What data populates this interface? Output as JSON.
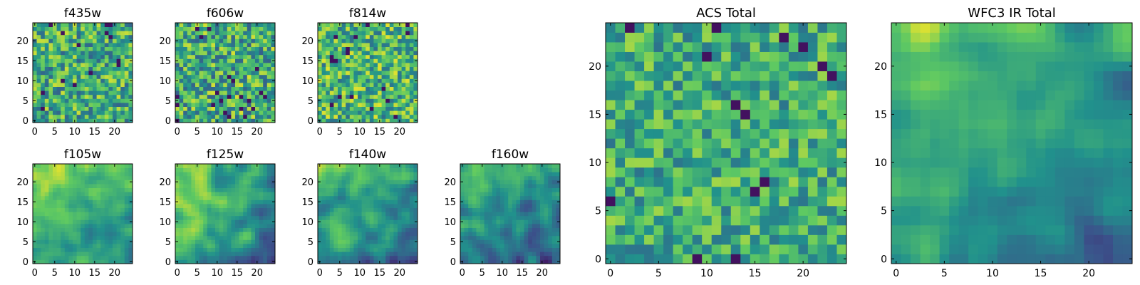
{
  "colormap": "viridis",
  "colormap_stops": [
    "#440154",
    "#3b528b",
    "#21918c",
    "#5ec962",
    "#fde725"
  ],
  "frame_color": "#000000",
  "chart_data": [
    {
      "type": "heatmap",
      "title": "f435w",
      "grid_size": 25,
      "xlim": [
        -0.5,
        24.5
      ],
      "ylim": [
        -0.5,
        24.5
      ],
      "xticks": [
        0,
        5,
        10,
        15,
        20
      ],
      "yticks": [
        0,
        5,
        10,
        15,
        20
      ],
      "texture": "noisy",
      "mean": 0.62,
      "spread": 0.3,
      "seed": 11
    },
    {
      "type": "heatmap",
      "title": "f606w",
      "grid_size": 25,
      "xlim": [
        -0.5,
        24.5
      ],
      "ylim": [
        -0.5,
        24.5
      ],
      "xticks": [
        0,
        5,
        10,
        15,
        20
      ],
      "yticks": [
        0,
        5,
        10,
        15,
        20
      ],
      "texture": "noisy",
      "mean": 0.62,
      "spread": 0.32,
      "seed": 23
    },
    {
      "type": "heatmap",
      "title": "f814w",
      "grid_size": 25,
      "xlim": [
        -0.5,
        24.5
      ],
      "ylim": [
        -0.5,
        24.5
      ],
      "xticks": [
        0,
        5,
        10,
        15,
        20
      ],
      "yticks": [
        0,
        5,
        10,
        15,
        20
      ],
      "texture": "noisy",
      "mean": 0.66,
      "spread": 0.3,
      "seed": 37
    },
    {
      "type": "heatmap",
      "title": "f105w",
      "grid_size": 25,
      "xlim": [
        -0.5,
        24.5
      ],
      "ylim": [
        -0.5,
        24.5
      ],
      "xticks": [
        0,
        5,
        10,
        15,
        20
      ],
      "yticks": [
        0,
        5,
        10,
        15,
        20
      ],
      "texture": "smooth",
      "mean": 0.64,
      "spread": 0.16,
      "seed": 41
    },
    {
      "type": "heatmap",
      "title": "f125w",
      "grid_size": 25,
      "xlim": [
        -0.5,
        24.5
      ],
      "ylim": [
        -0.5,
        24.5
      ],
      "xticks": [
        0,
        5,
        10,
        15,
        20
      ],
      "yticks": [
        0,
        5,
        10,
        15,
        20
      ],
      "texture": "smooth",
      "mean": 0.6,
      "spread": 0.18,
      "seed": 53
    },
    {
      "type": "heatmap",
      "title": "f140w",
      "grid_size": 25,
      "xlim": [
        -0.5,
        24.5
      ],
      "ylim": [
        -0.5,
        24.5
      ],
      "xticks": [
        0,
        5,
        10,
        15,
        20
      ],
      "yticks": [
        0,
        5,
        10,
        15,
        20
      ],
      "texture": "smooth",
      "mean": 0.55,
      "spread": 0.18,
      "seed": 67
    },
    {
      "type": "heatmap",
      "title": "f160w",
      "grid_size": 25,
      "xlim": [
        -0.5,
        24.5
      ],
      "ylim": [
        -0.5,
        24.5
      ],
      "xticks": [
        0,
        5,
        10,
        15,
        20
      ],
      "yticks": [
        0,
        5,
        10,
        15,
        20
      ],
      "texture": "smooth",
      "mean": 0.5,
      "spread": 0.18,
      "seed": 79
    },
    {
      "type": "heatmap",
      "title": "ACS Total",
      "grid_size": 25,
      "xlim": [
        -0.5,
        24.5
      ],
      "ylim": [
        -0.5,
        24.5
      ],
      "xticks": [
        0,
        5,
        10,
        15,
        20
      ],
      "yticks": [
        0,
        5,
        10,
        15,
        20
      ],
      "texture": "noisy",
      "mean": 0.62,
      "spread": 0.24,
      "seed": 97
    },
    {
      "type": "heatmap",
      "title": "WFC3 IR Total",
      "grid_size": 25,
      "xlim": [
        -0.5,
        24.5
      ],
      "ylim": [
        -0.5,
        24.5
      ],
      "xticks": [
        0,
        5,
        10,
        15,
        20
      ],
      "yticks": [
        0,
        5,
        10,
        15,
        20
      ],
      "texture": "smooth",
      "mean": 0.55,
      "spread": 0.14,
      "seed": 113
    }
  ]
}
